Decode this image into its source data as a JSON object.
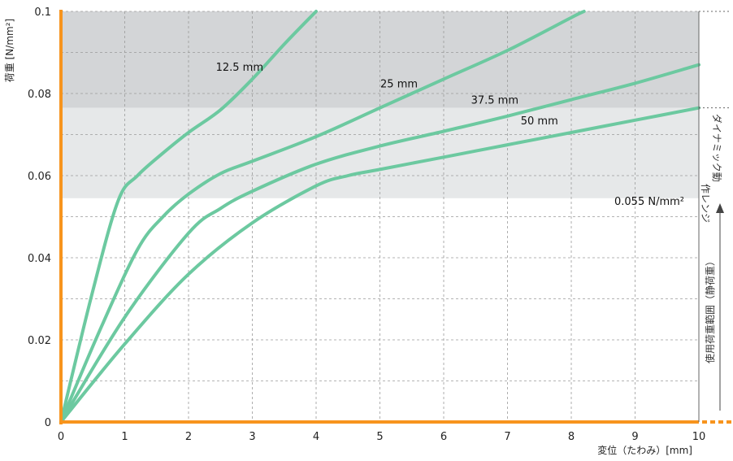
{
  "chart_data": {
    "type": "line",
    "xlabel": "変位（たわみ）[mm]",
    "ylabel": "荷重 [N/mm²]",
    "xlim": [
      0,
      10
    ],
    "ylim": [
      0,
      0.1
    ],
    "x_ticks": [
      "0",
      "1",
      "2",
      "3",
      "4",
      "5",
      "6",
      "7",
      "8",
      "9",
      "10"
    ],
    "y_ticks": [
      "0",
      "0.02",
      "0.04",
      "0.06",
      "0.08",
      "0.1"
    ],
    "grid": true,
    "colors": {
      "series": "#6cc9a0",
      "axis": "#f7941d",
      "band_dark": "#d3d5d7",
      "band_light": "#e6e8e9",
      "grid": "#9a9a9a"
    },
    "bands": [
      {
        "y0": 0.0765,
        "y1": 0.1,
        "color": "#d3d5d7"
      },
      {
        "y0": 0.0545,
        "y1": 0.0765,
        "color": "#e6e8e9"
      }
    ],
    "series": [
      {
        "name": "12.5 mm",
        "label_at": [
          2.8,
          0.0855
        ],
        "x": [
          0,
          0.5,
          0.9,
          1.2,
          1.6,
          2.0,
          2.5,
          3.0,
          3.5,
          4.0
        ],
        "y": [
          0,
          0.032,
          0.054,
          0.06,
          0.0655,
          0.0705,
          0.076,
          0.0835,
          0.092,
          0.1
        ]
      },
      {
        "name": "25 mm",
        "label_at": [
          5.3,
          0.0815
        ],
        "x": [
          0,
          0.6,
          1.2,
          1.6,
          2.0,
          2.5,
          3.0,
          4.0,
          5.0,
          6.0,
          7.0,
          8.0,
          8.2
        ],
        "y": [
          0,
          0.022,
          0.042,
          0.05,
          0.0555,
          0.0605,
          0.0635,
          0.0695,
          0.0765,
          0.0835,
          0.0905,
          0.0985,
          0.1
        ]
      },
      {
        "name": "37.5 mm",
        "label_at": [
          6.8,
          0.0775
        ],
        "x": [
          0,
          1.0,
          2.0,
          2.5,
          3.0,
          4.0,
          5.0,
          6.0,
          7.0,
          8.0,
          9.0,
          10.0
        ],
        "y": [
          0,
          0.0255,
          0.046,
          0.052,
          0.0562,
          0.0628,
          0.0672,
          0.0708,
          0.0745,
          0.0785,
          0.0825,
          0.087
        ]
      },
      {
        "name": "50 mm",
        "label_at": [
          7.5,
          0.0725
        ],
        "x": [
          0,
          1.0,
          2.0,
          3.0,
          4.0,
          4.5,
          5.0,
          6.0,
          7.0,
          8.0,
          9.0,
          10.0
        ],
        "y": [
          0,
          0.019,
          0.036,
          0.0485,
          0.0575,
          0.06,
          0.0615,
          0.0645,
          0.0675,
          0.0705,
          0.0735,
          0.0765
        ]
      }
    ],
    "annotations": {
      "threshold_label": "0.055 N/mm²",
      "side_dynamic": [
        "ダイナミック動",
        "作レンジ"
      ],
      "side_static": "使用荷重範囲（静荷重）"
    }
  }
}
